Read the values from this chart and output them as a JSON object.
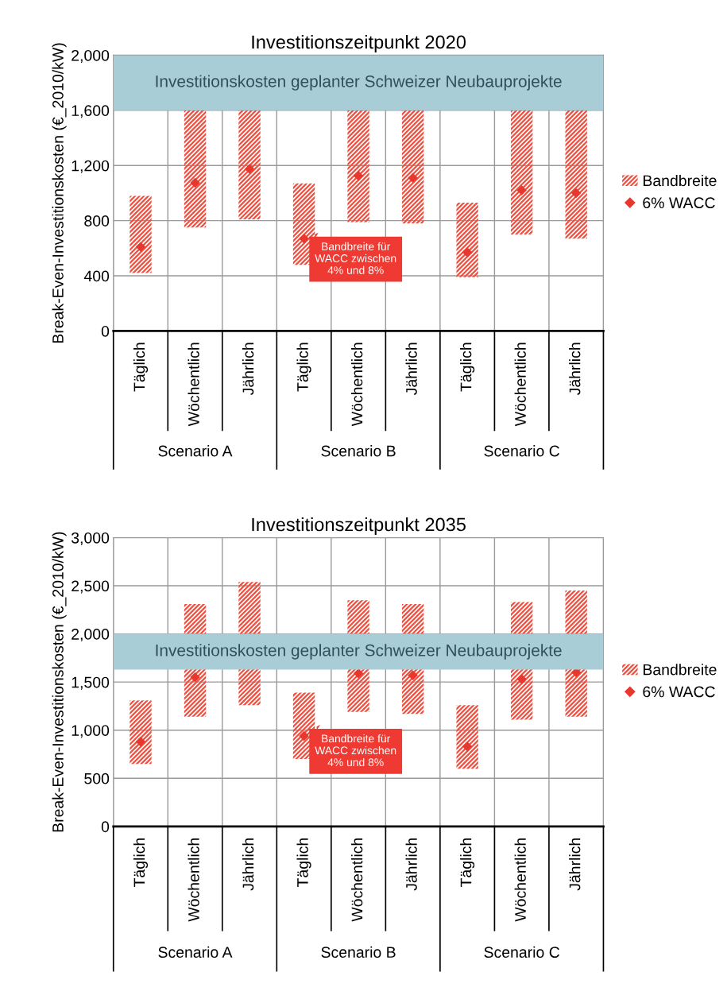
{
  "chart_data": [
    {
      "type": "bar",
      "title": "Investitionszeitpunkt 2020",
      "ylabel": "Break-Even-Investitionskosten (€_2010/kW)",
      "categories": [
        "Täglich",
        "Wöchentlich",
        "Jährlich",
        "Täglich",
        "Wöchentlich",
        "Jährlich",
        "Täglich",
        "Wöchentlich",
        "Jährlich"
      ],
      "series": [
        {
          "name": "Bandbreite",
          "color": "#f04e3e",
          "base": [
            420,
            750,
            810,
            480,
            790,
            780,
            390,
            700,
            670
          ],
          "values": [
            560,
            850,
            790,
            590,
            810,
            820,
            540,
            900,
            930
          ]
        },
        {
          "name": "6% WACC",
          "type": "scatter",
          "color": "#e8382e",
          "values": [
            610,
            1075,
            1175,
            670,
            1125,
            1110,
            570,
            1020,
            1000
          ]
        }
      ],
      "marker": "diamond",
      "ylim": [
        0,
        2000
      ],
      "yticks": [
        0,
        400,
        800,
        {
          "value": 1200,
          "label": "1,200"
        },
        {
          "value": 1600,
          "label": "1,600"
        },
        {
          "value": 2000,
          "label": "2,000"
        }
      ],
      "bands": [
        {
          "axis": "y",
          "from": 1600,
          "to": 2000,
          "label": "Investitionskosten geplanter Schweizer Neubauprojekte",
          "color": "#a9cdd6"
        }
      ],
      "annotations": [
        "Scenario A",
        "Scenario B",
        "Scenario C",
        "Bandbreite für\nWACC zwischen\n4% und 8%"
      ],
      "grid": true,
      "legend": "right"
    },
    {
      "type": "bar",
      "title": "Investitionszeitpunkt 2035",
      "ylabel": "Break-Even-Investitionskosten (€_2010/kW)",
      "categories": [
        "Täglich",
        "Wöchentlich",
        "Jährlich",
        "Täglich",
        "Wöchentlich",
        "Jährlich",
        "Täglich",
        "Wöchentlich",
        "Jährlich"
      ],
      "series": [
        {
          "name": "Bandbreite",
          "color": "#f04e3e",
          "base": [
            650,
            1140,
            1260,
            700,
            1190,
            1170,
            600,
            1110,
            1140
          ],
          "values": [
            660,
            1170,
            1280,
            690,
            1160,
            1140,
            660,
            1220,
            1310
          ]
        },
        {
          "name": "6% WACC",
          "type": "scatter",
          "color": "#e8382e",
          "values": [
            880,
            1550,
            null,
            940,
            1590,
            1570,
            830,
            1530,
            1600
          ]
        }
      ],
      "marker": "diamond",
      "ylim": [
        0,
        3000
      ],
      "yticks": [
        0,
        500,
        {
          "value": 1000,
          "label": "1,000"
        },
        {
          "value": 1500,
          "label": "1,500"
        },
        {
          "value": 2000,
          "label": "2,000"
        },
        {
          "value": 2500,
          "label": "2,500"
        },
        {
          "value": 3000,
          "label": "3,000"
        }
      ],
      "bands": [
        {
          "axis": "y",
          "from": 1630,
          "to": 2000,
          "label": "Investitionskosten geplanter Schweizer Neubauprojekte",
          "color": "#a9cdd6"
        }
      ],
      "annotations": [
        "Scenario A",
        "Scenario B",
        "Scenario C",
        "Bandbreite für\nWACC zwischen\n4% und 8%"
      ],
      "grid": true,
      "legend": "right"
    }
  ]
}
